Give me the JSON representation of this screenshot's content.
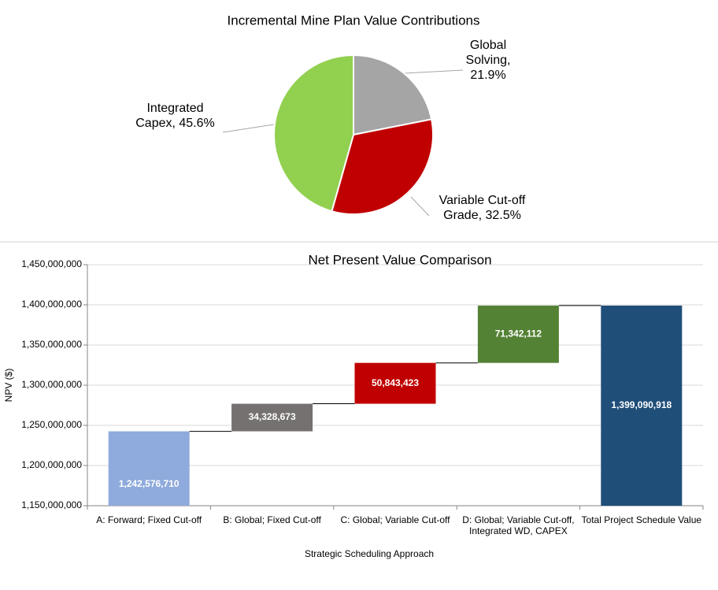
{
  "chart_data": [
    {
      "type": "pie",
      "title": "Incremental Mine Plan Value Contributions",
      "values": [
        21.9,
        32.5,
        45.6
      ],
      "value_labels": [
        "Global Solving, 21.9%",
        "Variable Cut-off Grade, 32.5%",
        "Integrated Capex, 45.6%"
      ],
      "colors": [
        "#a5a5a5",
        "#c00000",
        "#92d050"
      ]
    },
    {
      "type": "waterfall",
      "title": "Net Present Value Comparison",
      "x_label": "Strategic Scheduling Approach",
      "y_label": "NPV ($)",
      "categories": [
        "A: Forward; Fixed Cut-off",
        "B: Global; Fixed Cut-off",
        "C: Global; Variable Cut-off",
        "D: Global; Variable Cut-off, Integrated WD, CAPEX",
        "Total Project Schedule Value"
      ],
      "measure": [
        "absolute",
        "relative",
        "relative",
        "relative",
        "total"
      ],
      "values": [
        1242576710,
        34328673,
        50843423,
        71342112,
        1399090918
      ],
      "value_labels": [
        "1,242,576,710",
        "34,328,673",
        "50,843,423",
        "71,342,112",
        "1,399,090,918"
      ],
      "colors": [
        "#8faadc",
        "#767171",
        "#c00000",
        "#548235",
        "#1f4e79"
      ],
      "ylim": [
        1150000000,
        1450000000
      ],
      "yticks": [
        {
          "value": 1150000000,
          "label": "1,150,000,000"
        },
        {
          "value": 1200000000,
          "label": "1,200,000,000"
        },
        {
          "value": 1250000000,
          "label": "1,250,000,000"
        },
        {
          "value": 1300000000,
          "label": "1,300,000,000"
        },
        {
          "value": 1350000000,
          "label": "1,350,000,000"
        },
        {
          "value": 1400000000,
          "label": "1,400,000,000"
        },
        {
          "value": 1450000000,
          "label": "1,450,000,000"
        }
      ],
      "grid": true
    }
  ]
}
